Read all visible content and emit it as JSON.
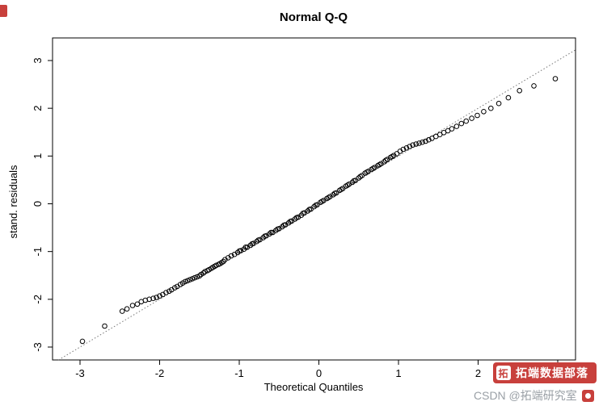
{
  "page": {
    "background": "#ffffff"
  },
  "chart_data": {
    "type": "scatter",
    "title": "Normal Q-Q",
    "xlabel": "Theoretical Quantiles",
    "ylabel": "stand. residuals",
    "xlim": [
      -3.3,
      3.3
    ],
    "ylim": [
      -3.3,
      3.3
    ],
    "x_ticks": [
      -3,
      -2,
      -1,
      0,
      1,
      2,
      3
    ],
    "y_ticks": [
      -3,
      -2,
      -1,
      0,
      1,
      2,
      3
    ],
    "grid": false,
    "legend": "none",
    "marker": "open-circle",
    "point_color": "#000000",
    "reference_line": {
      "type": "qqline",
      "style": "dotted",
      "slope": 1,
      "intercept": 0,
      "color": "#777777"
    },
    "points": [
      [
        -2.97,
        -2.88
      ],
      [
        -2.69,
        -2.56
      ],
      [
        -2.47,
        -2.25
      ],
      [
        -2.41,
        -2.2
      ],
      [
        -2.34,
        -2.13
      ],
      [
        -2.28,
        -2.1
      ],
      [
        -2.23,
        -2.05
      ],
      [
        -2.18,
        -2.02
      ],
      [
        -2.13,
        -2.0
      ],
      [
        -2.08,
        -1.98
      ],
      [
        -2.04,
        -1.96
      ],
      [
        -2.0,
        -1.93
      ],
      [
        -1.96,
        -1.9
      ],
      [
        -1.92,
        -1.86
      ],
      [
        -1.88,
        -1.83
      ],
      [
        -1.85,
        -1.8
      ],
      [
        -1.81,
        -1.76
      ],
      [
        -1.78,
        -1.73
      ],
      [
        -1.74,
        -1.69
      ],
      [
        -1.71,
        -1.66
      ],
      [
        -1.68,
        -1.63
      ],
      [
        -1.65,
        -1.61
      ],
      [
        -1.62,
        -1.59
      ],
      [
        -1.59,
        -1.57
      ],
      [
        -1.56,
        -1.55
      ],
      [
        -1.53,
        -1.53
      ],
      [
        -1.5,
        -1.51
      ],
      [
        -1.48,
        -1.48
      ],
      [
        -1.45,
        -1.45
      ],
      [
        -1.43,
        -1.42
      ],
      [
        -1.4,
        -1.4
      ],
      [
        -1.38,
        -1.38
      ],
      [
        -1.35,
        -1.35
      ],
      [
        -1.33,
        -1.33
      ],
      [
        -1.31,
        -1.31
      ],
      [
        -1.29,
        -1.29
      ],
      [
        -1.26,
        -1.27
      ],
      [
        -1.24,
        -1.25
      ],
      [
        -1.22,
        -1.23
      ],
      [
        -1.2,
        -1.21
      ],
      [
        -1.18,
        -1.17
      ],
      [
        -1.14,
        -1.13
      ],
      [
        -1.1,
        -1.09
      ],
      [
        -1.06,
        -1.06
      ],
      [
        -1.02,
        -1.02
      ],
      [
        -0.98,
        -0.98
      ],
      [
        -0.94,
        -0.95
      ],
      [
        -0.9,
        -0.91
      ],
      [
        -0.86,
        -0.87
      ],
      [
        -0.82,
        -0.83
      ],
      [
        -0.78,
        -0.79
      ],
      [
        -0.74,
        -0.75
      ],
      [
        -0.7,
        -0.71
      ],
      [
        -0.66,
        -0.67
      ],
      [
        -0.62,
        -0.63
      ],
      [
        -0.58,
        -0.6
      ],
      [
        -0.54,
        -0.56
      ],
      [
        -0.5,
        -0.52
      ],
      [
        -0.46,
        -0.48
      ],
      [
        -0.42,
        -0.44
      ],
      [
        -0.38,
        -0.4
      ],
      [
        -0.34,
        -0.36
      ],
      [
        -0.3,
        -0.32
      ],
      [
        -0.26,
        -0.28
      ],
      [
        -0.22,
        -0.24
      ],
      [
        -0.18,
        -0.19
      ],
      [
        -0.14,
        -0.15
      ],
      [
        -0.1,
        -0.11
      ],
      [
        -0.06,
        -0.06
      ],
      [
        -0.02,
        -0.02
      ],
      [
        0.02,
        0.03
      ],
      [
        0.06,
        0.07
      ],
      [
        0.1,
        0.11
      ],
      [
        0.14,
        0.15
      ],
      [
        0.18,
        0.19
      ],
      [
        0.22,
        0.23
      ],
      [
        0.26,
        0.28
      ],
      [
        0.3,
        0.32
      ],
      [
        0.34,
        0.37
      ],
      [
        0.38,
        0.41
      ],
      [
        0.42,
        0.45
      ],
      [
        0.46,
        0.49
      ],
      [
        0.5,
        0.54
      ],
      [
        0.54,
        0.59
      ],
      [
        0.58,
        0.64
      ],
      [
        0.62,
        0.68
      ],
      [
        0.66,
        0.72
      ],
      [
        0.7,
        0.76
      ],
      [
        0.74,
        0.8
      ],
      [
        0.78,
        0.84
      ],
      [
        0.82,
        0.88
      ],
      [
        0.86,
        0.93
      ],
      [
        0.9,
        0.97
      ],
      [
        0.94,
        1.01
      ],
      [
        0.98,
        1.05
      ],
      [
        1.02,
        1.1
      ],
      [
        -1.0,
        -0.99
      ],
      [
        -0.92,
        -0.91
      ],
      [
        -0.84,
        -0.84
      ],
      [
        -0.76,
        -0.76
      ],
      [
        -0.68,
        -0.68
      ],
      [
        -0.6,
        -0.6
      ],
      [
        -0.52,
        -0.53
      ],
      [
        -0.44,
        -0.45
      ],
      [
        -0.36,
        -0.37
      ],
      [
        -0.28,
        -0.29
      ],
      [
        -0.2,
        -0.2
      ],
      [
        -0.12,
        -0.12
      ],
      [
        -0.04,
        -0.03
      ],
      [
        0.04,
        0.05
      ],
      [
        0.12,
        0.13
      ],
      [
        0.2,
        0.22
      ],
      [
        0.28,
        0.3
      ],
      [
        0.36,
        0.39
      ],
      [
        0.44,
        0.48
      ],
      [
        0.52,
        0.57
      ],
      [
        0.6,
        0.66
      ],
      [
        0.68,
        0.74
      ],
      [
        0.76,
        0.82
      ],
      [
        0.84,
        0.91
      ],
      [
        0.92,
        0.99
      ],
      [
        1.06,
        1.14
      ],
      [
        1.1,
        1.17
      ],
      [
        1.14,
        1.2
      ],
      [
        1.18,
        1.23
      ],
      [
        1.22,
        1.25
      ],
      [
        1.26,
        1.27
      ],
      [
        1.3,
        1.29
      ],
      [
        1.34,
        1.31
      ],
      [
        1.38,
        1.34
      ],
      [
        1.42,
        1.37
      ],
      [
        1.47,
        1.41
      ],
      [
        1.52,
        1.45
      ],
      [
        1.57,
        1.49
      ],
      [
        1.62,
        1.53
      ],
      [
        1.67,
        1.57
      ],
      [
        1.73,
        1.62
      ],
      [
        1.79,
        1.68
      ],
      [
        1.85,
        1.73
      ],
      [
        1.92,
        1.79
      ],
      [
        1.99,
        1.85
      ],
      [
        2.07,
        1.93
      ],
      [
        2.16,
        2.0
      ],
      [
        2.26,
        2.1
      ],
      [
        2.38,
        2.22
      ],
      [
        2.52,
        2.37
      ],
      [
        2.7,
        2.47
      ],
      [
        2.97,
        2.62
      ]
    ]
  },
  "watermarks": {
    "topleft_fragment_color": "#c8403c",
    "badge": {
      "label": "拓端数据部落",
      "logo_glyph": "拓",
      "bg": "#c8403c",
      "text_color": "#ffffff"
    },
    "csdn": {
      "label": "CSDN @拓端研究室",
      "color": "#9aa0a6"
    }
  }
}
